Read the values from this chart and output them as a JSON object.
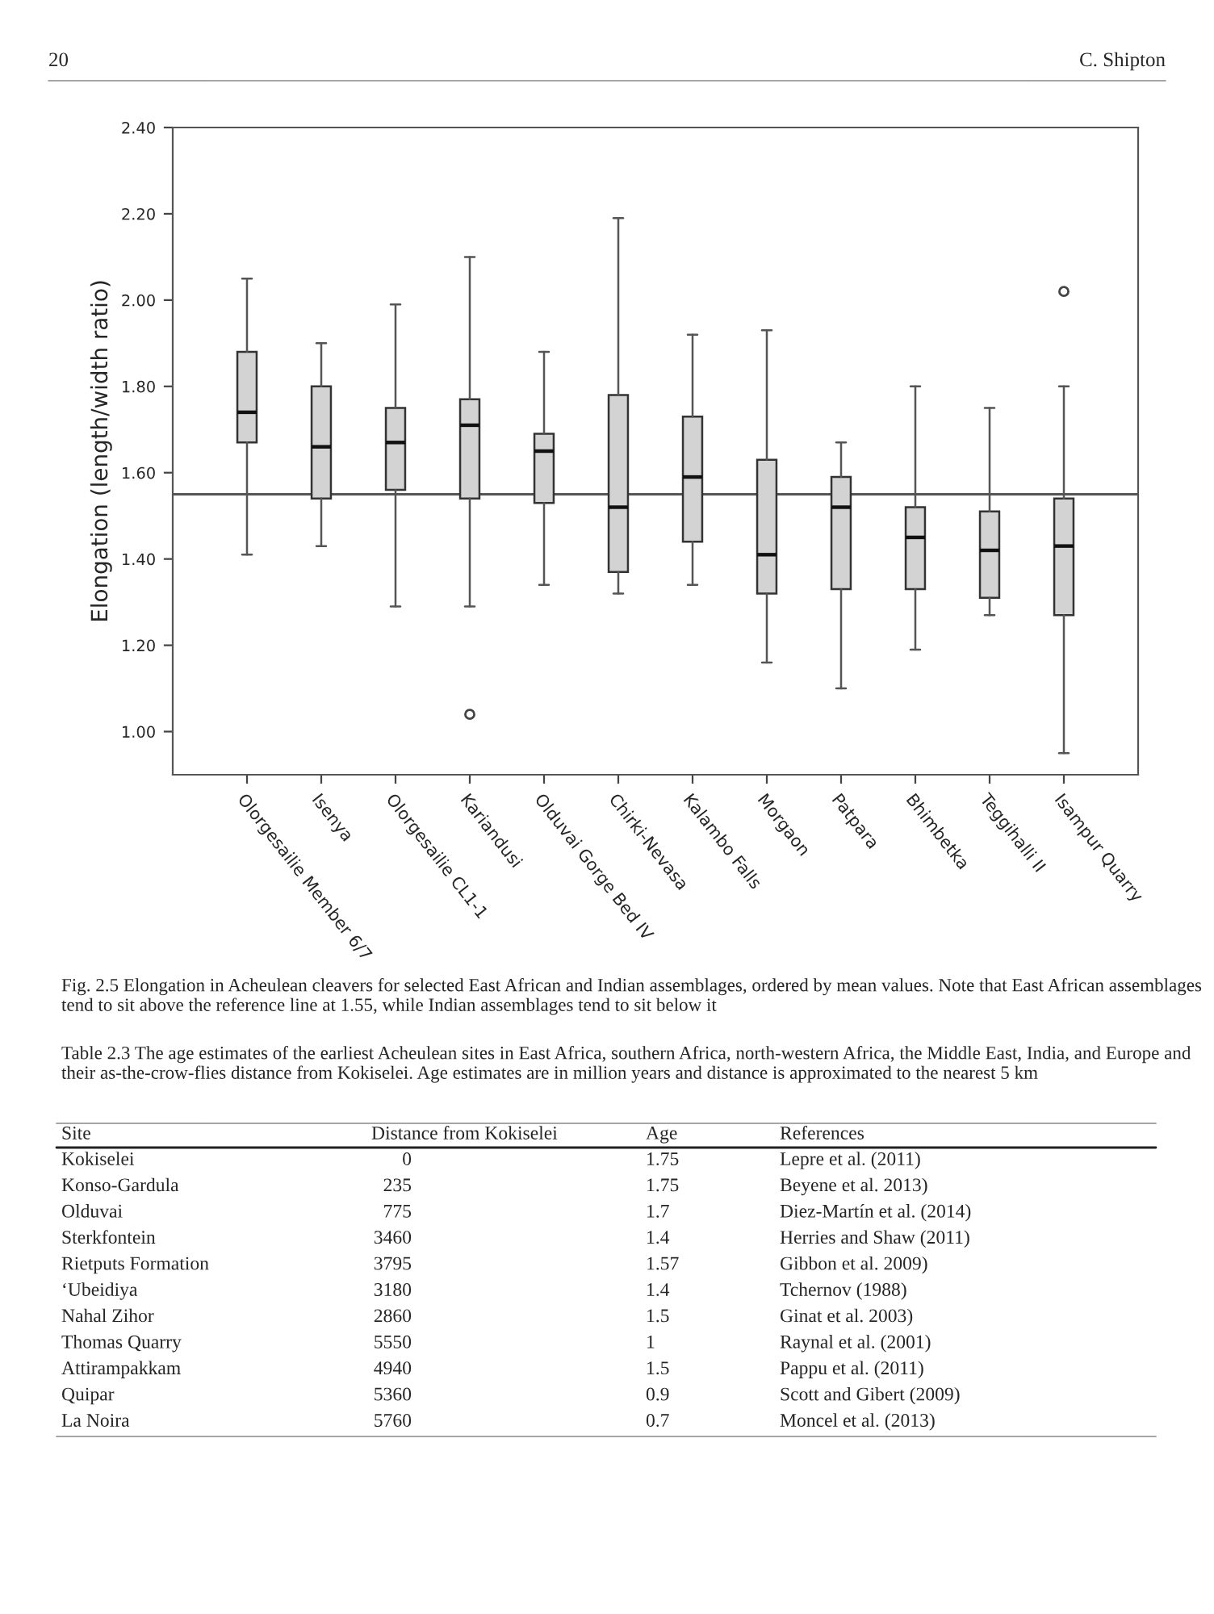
{
  "chart_data": [
    {
      "type": "box",
      "ylabel": "Elongation (length/width ratio)",
      "categories": [
        "Olorgesailie Member 6/7",
        "Isenya",
        "Olorgesailie CL1-1",
        "Kariandusi",
        "Olduvai Gorge Bed IV",
        "Chirki-Nevasa",
        "Kalambo Falls",
        "Morgaon",
        "Patpara",
        "Bhimbetka",
        "Teggihalli II",
        "Isampur Quarry"
      ],
      "boxes": [
        {
          "low": 1.41,
          "q1": 1.67,
          "median": 1.74,
          "q3": 1.88,
          "high": 2.05
        },
        {
          "low": 1.43,
          "q1": 1.54,
          "median": 1.66,
          "q3": 1.8,
          "high": 1.9
        },
        {
          "low": 1.29,
          "q1": 1.56,
          "median": 1.67,
          "q3": 1.75,
          "high": 1.99
        },
        {
          "low": 1.29,
          "q1": 1.54,
          "median": 1.71,
          "q3": 1.77,
          "high": 2.1,
          "outliers": [
            1.04
          ]
        },
        {
          "low": 1.34,
          "q1": 1.53,
          "median": 1.65,
          "q3": 1.69,
          "high": 1.88
        },
        {
          "low": 1.32,
          "q1": 1.37,
          "median": 1.52,
          "q3": 1.78,
          "high": 2.19
        },
        {
          "low": 1.34,
          "q1": 1.44,
          "median": 1.59,
          "q3": 1.73,
          "high": 1.92
        },
        {
          "low": 1.16,
          "q1": 1.32,
          "median": 1.41,
          "q3": 1.63,
          "high": 1.93
        },
        {
          "low": 1.1,
          "q1": 1.33,
          "median": 1.52,
          "q3": 1.59,
          "high": 1.67
        },
        {
          "low": 1.19,
          "q1": 1.33,
          "median": 1.45,
          "q3": 1.52,
          "high": 1.8
        },
        {
          "low": 1.27,
          "q1": 1.31,
          "median": 1.42,
          "q3": 1.51,
          "high": 1.75
        },
        {
          "low": 0.95,
          "q1": 1.27,
          "median": 1.43,
          "q3": 1.54,
          "high": 1.8,
          "outliers": [
            2.02
          ]
        }
      ],
      "color": "#d3d3d3",
      "ylim": [
        0.9,
        2.4
      ],
      "yticks": [
        {
          "value": 1.0,
          "label": "1.00"
        },
        {
          "value": 1.2,
          "label": "1.20"
        },
        {
          "value": 1.4,
          "label": "1.40"
        },
        {
          "value": 1.6,
          "label": "1.60"
        },
        {
          "value": 1.8,
          "label": "1.80"
        },
        {
          "value": 2.0,
          "label": "2.00"
        },
        {
          "value": 2.2,
          "label": "2.20"
        },
        {
          "value": 2.4,
          "label": "2.40"
        }
      ],
      "ref_lines": [
        {
          "axis": "y",
          "value": 1.55,
          "color": "#555555"
        }
      ],
      "grid": false,
      "annotations": [
        "20",
        "C. Shipton",
        "Fig. 2.5 Elongation in Acheulean cleavers for selected East African and Indian assemblages, ordered by mean values. Note that East African assemblages tend to sit above the reference line at 1.55, while Indian assemblages tend to sit below it"
      ]
    },
    {
      "type": "other",
      "title": "Table 2.3 The age estimates of the earliest Acheulean sites in East Africa, southern Africa, north-western Africa, the Middle East, India, and Europe and their as-the-crow-flies distance from Kokiselei. Age estimates are in million years and distance is approximated to the nearest 5 km",
      "annotations": [
        "Site",
        "Distance from Kokiselei",
        "Age",
        "References",
        "Kokiselei",
        "0",
        "1.75",
        "Lepre et al. (2011)",
        "Konso-Gardula",
        "235",
        "1.75",
        "Beyene et al. 2013)",
        "Olduvai",
        "775",
        "1.7",
        "Diez-Martín et al. (2014)",
        "Sterkfontein",
        "3460",
        "1.4",
        "Herries and Shaw (2011)",
        "Rietputs Formation",
        "3795",
        "1.57",
        "Gibbon et al. 2009)",
        "‘Ubeidiya",
        "3180",
        "1.4",
        "Tchernov (1988)",
        "Nahal Zihor",
        "2860",
        "1.5",
        "Ginat et al. 2003)",
        "Thomas Quarry",
        "5550",
        "1",
        "Raynal et al. (2001)",
        "Attirampakkam",
        "4940",
        "1.5",
        "Pappu et al. (2011)",
        "Quipar",
        "5360",
        "0.9",
        "Scott and Gibert (2009)",
        "La Noira",
        "5760",
        "0.7",
        "Moncel et al. (2013)"
      ]
    }
  ]
}
